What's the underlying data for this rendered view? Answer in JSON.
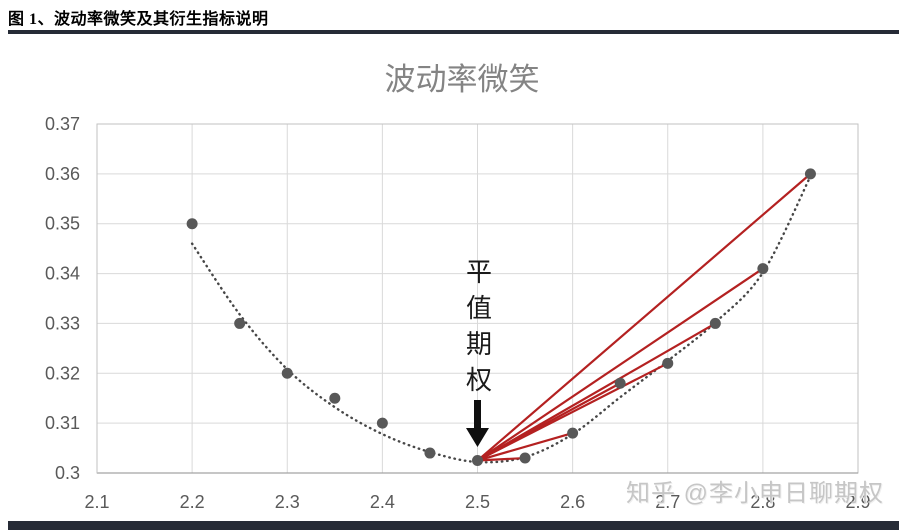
{
  "header": {
    "caption": "图 1、波动率微笑及其衍生指标说明"
  },
  "watermark": {
    "text": "知乎 @李小申日聊期权"
  },
  "chart_data": {
    "type": "scatter",
    "title": "波动率微笑",
    "xlabel": "",
    "ylabel": "",
    "xlim": [
      2.1,
      2.9
    ],
    "ylim": [
      0.3,
      0.37
    ],
    "grid": true,
    "legend": false,
    "x_tick_labels": [
      "2.1",
      "2.2",
      "2.3",
      "2.4",
      "2.5",
      "2.6",
      "2.7",
      "2.8",
      "2.9"
    ],
    "y_tick_labels": [
      "0.3",
      "0.31",
      "0.32",
      "0.33",
      "0.34",
      "0.35",
      "0.36",
      "0.37"
    ],
    "points": [
      [
        2.2,
        0.35
      ],
      [
        2.25,
        0.33
      ],
      [
        2.3,
        0.32
      ],
      [
        2.35,
        0.315
      ],
      [
        2.4,
        0.31
      ],
      [
        2.45,
        0.304
      ],
      [
        2.5,
        0.3025
      ],
      [
        2.55,
        0.303
      ],
      [
        2.6,
        0.308
      ],
      [
        2.65,
        0.318
      ],
      [
        2.7,
        0.322
      ],
      [
        2.75,
        0.33
      ],
      [
        2.8,
        0.341
      ],
      [
        2.85,
        0.36
      ]
    ],
    "trend_dotted": [
      [
        2.2,
        0.346
      ],
      [
        2.25,
        0.3318
      ],
      [
        2.3,
        0.3208
      ],
      [
        2.35,
        0.3132
      ],
      [
        2.4,
        0.3078
      ],
      [
        2.45,
        0.3042
      ],
      [
        2.5,
        0.3022
      ],
      [
        2.55,
        0.3032
      ],
      [
        2.6,
        0.3078
      ],
      [
        2.65,
        0.3152
      ],
      [
        2.7,
        0.3225
      ],
      [
        2.75,
        0.3302
      ],
      [
        2.8,
        0.3402
      ],
      [
        2.85,
        0.3595
      ]
    ],
    "atm_fan": {
      "origin": [
        2.5,
        0.3025
      ],
      "targets": [
        [
          2.55,
          0.303
        ],
        [
          2.6,
          0.308
        ],
        [
          2.65,
          0.318
        ],
        [
          2.7,
          0.322
        ],
        [
          2.75,
          0.33
        ],
        [
          2.8,
          0.341
        ],
        [
          2.85,
          0.36
        ]
      ]
    },
    "annotation": {
      "text": "平值期权",
      "target_x": 2.5
    },
    "colors": {
      "point": "#585858",
      "trend": "#474747",
      "fan_line": "#b42121",
      "grid": "#d9d9d9",
      "axis": "#c2c2c2",
      "axis_bottom": "#a3a3a3",
      "tick": "#595959",
      "title": "#848484",
      "annotation": "#1a1a1a",
      "arrow": "#0f0f0f",
      "rule": "#262b36",
      "watermark": "#c6c6c6"
    }
  }
}
